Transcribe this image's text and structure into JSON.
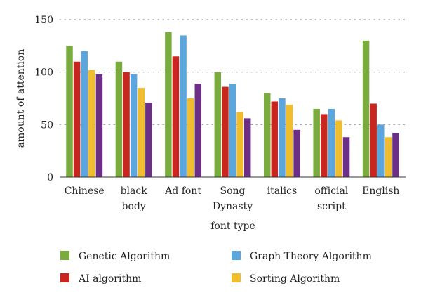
{
  "chart_data": {
    "type": "bar",
    "title": "",
    "xlabel": "font type",
    "ylabel": "amount of attention",
    "ylim": [
      0,
      150
    ],
    "yticks": [
      0,
      50,
      100,
      150
    ],
    "grid": true,
    "legend_position": "bottom",
    "categories": [
      [
        "Chinese"
      ],
      [
        "black",
        "body"
      ],
      [
        "Ad font"
      ],
      [
        "Song",
        "Dynasty"
      ],
      [
        "italics"
      ],
      [
        "official",
        "script"
      ],
      [
        "English"
      ]
    ],
    "series": [
      {
        "name": "Genetic Algorithm",
        "color": "#7aab3e",
        "values": [
          125,
          110,
          138,
          100,
          80,
          65,
          130
        ]
      },
      {
        "name": "AI algorithm",
        "color": "#c8261e",
        "values": [
          110,
          100,
          115,
          86,
          72,
          60,
          70
        ]
      },
      {
        "name": "Graph Theory Algorithm",
        "color": "#5aa6dd",
        "values": [
          120,
          98,
          135,
          89,
          75,
          65,
          50
        ]
      },
      {
        "name": "Sorting Algorithm",
        "color": "#f0bd2e",
        "values": [
          102,
          85,
          75,
          62,
          69,
          54,
          38
        ]
      },
      {
        "name": "",
        "color": "#6b2f86",
        "values": [
          98,
          71,
          89,
          56,
          45,
          38,
          42
        ]
      }
    ],
    "legend_order": [
      0,
      2,
      1,
      3
    ]
  }
}
